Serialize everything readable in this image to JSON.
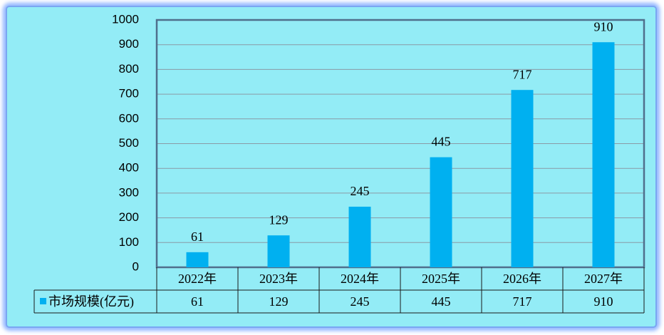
{
  "chart_data": {
    "type": "bar",
    "categories": [
      "2022年",
      "2023年",
      "2024年",
      "2025年",
      "2026年",
      "2027年"
    ],
    "series": [
      {
        "name": "市场规模(亿元)",
        "color": "#00b0f0",
        "values": [
          61,
          129,
          245,
          445,
          717,
          910
        ]
      }
    ],
    "ylim": [
      0,
      1000
    ],
    "yticks": [
      0,
      100,
      200,
      300,
      400,
      500,
      600,
      700,
      800,
      900,
      1000
    ],
    "grid": true,
    "data_table": true
  }
}
